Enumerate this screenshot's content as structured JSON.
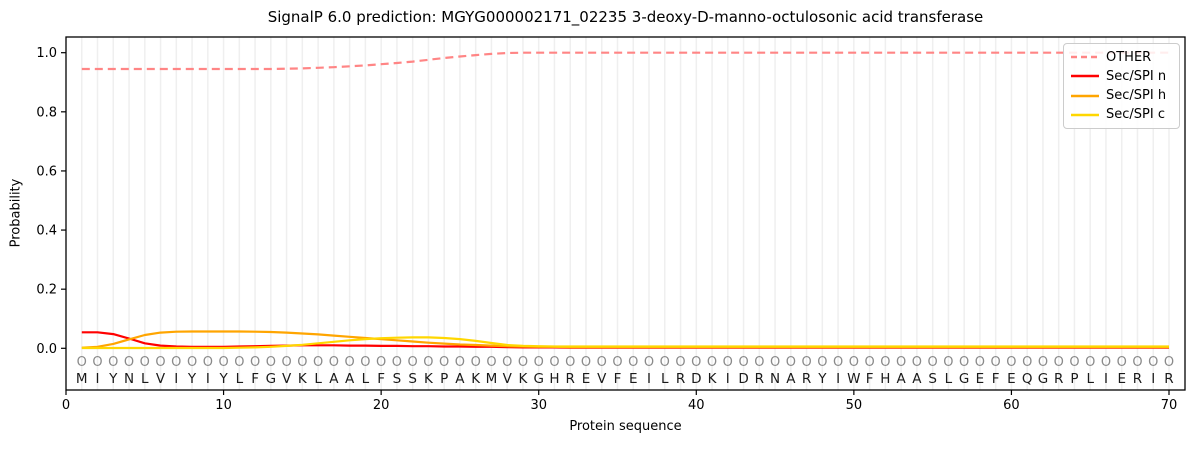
{
  "figure": {
    "title": "SignalP 6.0 prediction: MGYG000002171_02235 3-deoxy-D-manno-octulosonic acid transferase"
  },
  "chart_data": {
    "type": "line",
    "title": "SignalP 6.0 prediction: MGYG000002171_02235 3-deoxy-D-manno-octulosonic acid transferase",
    "xlabel": "Protein sequence",
    "ylabel": "Probability",
    "xlim": [
      0,
      71
    ],
    "ylim": [
      -0.14,
      1.05
    ],
    "xticks": [
      0,
      10,
      20,
      30,
      40,
      50,
      60,
      70
    ],
    "yticks": [
      0.0,
      0.2,
      0.4,
      0.6,
      0.8,
      1.0
    ],
    "ytick_labels": [
      "0.0",
      "0.2",
      "0.4",
      "0.6",
      "0.8",
      "1.0"
    ],
    "grid": "vertical gridline at each residue position, no horizontal gridlines",
    "legend_position": "upper right",
    "sequence": "MIYNLVIYIYLFGVKLAALFSSKPAKMVKGHREVFEILRDKIDRNARYIWFHAASLGEFEQGRPLIERIR",
    "residue_mark_char": "O",
    "x": [
      1,
      2,
      3,
      4,
      5,
      6,
      7,
      8,
      9,
      10,
      11,
      12,
      13,
      14,
      15,
      16,
      17,
      18,
      19,
      20,
      21,
      22,
      23,
      24,
      25,
      26,
      27,
      28,
      29,
      30,
      31,
      32,
      33,
      34,
      35,
      36,
      37,
      38,
      39,
      40,
      41,
      42,
      43,
      44,
      45,
      46,
      47,
      48,
      49,
      50,
      51,
      52,
      53,
      54,
      55,
      56,
      57,
      58,
      59,
      60,
      61,
      62,
      63,
      64,
      65,
      66,
      67,
      68,
      69,
      70
    ],
    "series": [
      {
        "name": "OTHER",
        "color": "#ff8585",
        "style": "dashed",
        "values": [
          0.945,
          0.945,
          0.945,
          0.945,
          0.945,
          0.945,
          0.945,
          0.945,
          0.945,
          0.945,
          0.945,
          0.945,
          0.945,
          0.946,
          0.947,
          0.949,
          0.951,
          0.954,
          0.957,
          0.961,
          0.965,
          0.97,
          0.976,
          0.982,
          0.987,
          0.992,
          0.996,
          0.999,
          1.0,
          1.0,
          1.0,
          1.0,
          1.0,
          1.0,
          1.0,
          1.0,
          1.0,
          1.0,
          1.0,
          1.0,
          1.0,
          1.0,
          1.0,
          1.0,
          1.0,
          1.0,
          1.0,
          1.0,
          1.0,
          1.0,
          1.0,
          1.0,
          1.0,
          1.0,
          1.0,
          1.0,
          1.0,
          1.0,
          1.0,
          1.0,
          1.0,
          1.0,
          1.0,
          1.0,
          1.0,
          1.0,
          1.0,
          1.0,
          1.0,
          1.0
        ]
      },
      {
        "name": "Sec/SPI n",
        "color": "#ff0000",
        "style": "solid",
        "values": [
          0.054,
          0.054,
          0.048,
          0.033,
          0.017,
          0.009,
          0.006,
          0.005,
          0.005,
          0.005,
          0.006,
          0.007,
          0.008,
          0.009,
          0.01,
          0.01,
          0.01,
          0.009,
          0.009,
          0.008,
          0.008,
          0.007,
          0.007,
          0.006,
          0.006,
          0.005,
          0.005,
          0.004,
          0.003,
          0.003,
          0.003,
          0.002,
          0.002,
          0.002,
          0.002,
          0.002,
          0.002,
          0.002,
          0.002,
          0.002,
          0.002,
          0.002,
          0.002,
          0.002,
          0.002,
          0.002,
          0.002,
          0.002,
          0.002,
          0.002,
          0.002,
          0.002,
          0.002,
          0.002,
          0.002,
          0.002,
          0.002,
          0.002,
          0.002,
          0.002,
          0.002,
          0.002,
          0.002,
          0.002,
          0.002,
          0.002,
          0.002,
          0.002,
          0.002,
          0.002
        ]
      },
      {
        "name": "Sec/SPI h",
        "color": "#ffa500",
        "style": "solid",
        "values": [
          0.002,
          0.005,
          0.015,
          0.03,
          0.045,
          0.053,
          0.056,
          0.057,
          0.057,
          0.057,
          0.057,
          0.056,
          0.055,
          0.053,
          0.05,
          0.047,
          0.043,
          0.039,
          0.035,
          0.031,
          0.027,
          0.023,
          0.019,
          0.016,
          0.013,
          0.011,
          0.009,
          0.007,
          0.006,
          0.005,
          0.005,
          0.004,
          0.004,
          0.004,
          0.004,
          0.004,
          0.004,
          0.004,
          0.004,
          0.004,
          0.004,
          0.004,
          0.004,
          0.004,
          0.004,
          0.004,
          0.004,
          0.004,
          0.004,
          0.004,
          0.004,
          0.004,
          0.004,
          0.004,
          0.004,
          0.004,
          0.004,
          0.004,
          0.004,
          0.004,
          0.004,
          0.004,
          0.004,
          0.004,
          0.004,
          0.004,
          0.004,
          0.004,
          0.004,
          0.004
        ]
      },
      {
        "name": "Sec/SPI c",
        "color": "#ffd700",
        "style": "solid",
        "values": [
          0.001,
          0.001,
          0.001,
          0.001,
          0.001,
          0.001,
          0.001,
          0.001,
          0.001,
          0.001,
          0.002,
          0.003,
          0.005,
          0.008,
          0.012,
          0.017,
          0.022,
          0.027,
          0.031,
          0.034,
          0.036,
          0.037,
          0.037,
          0.035,
          0.031,
          0.025,
          0.018,
          0.011,
          0.008,
          0.007,
          0.006,
          0.006,
          0.006,
          0.006,
          0.006,
          0.006,
          0.006,
          0.006,
          0.006,
          0.006,
          0.006,
          0.006,
          0.006,
          0.006,
          0.006,
          0.006,
          0.006,
          0.006,
          0.006,
          0.006,
          0.006,
          0.006,
          0.006,
          0.006,
          0.006,
          0.006,
          0.006,
          0.006,
          0.006,
          0.006,
          0.006,
          0.006,
          0.006,
          0.006,
          0.006,
          0.006,
          0.006,
          0.006,
          0.006,
          0.006
        ]
      }
    ]
  },
  "style_colors": {
    "gridline": "#efefef",
    "axis_border": "#000000",
    "residue_mark": "#8a8a8a",
    "residue_letter": "#1a1a1a",
    "tick_text": "#000000"
  }
}
